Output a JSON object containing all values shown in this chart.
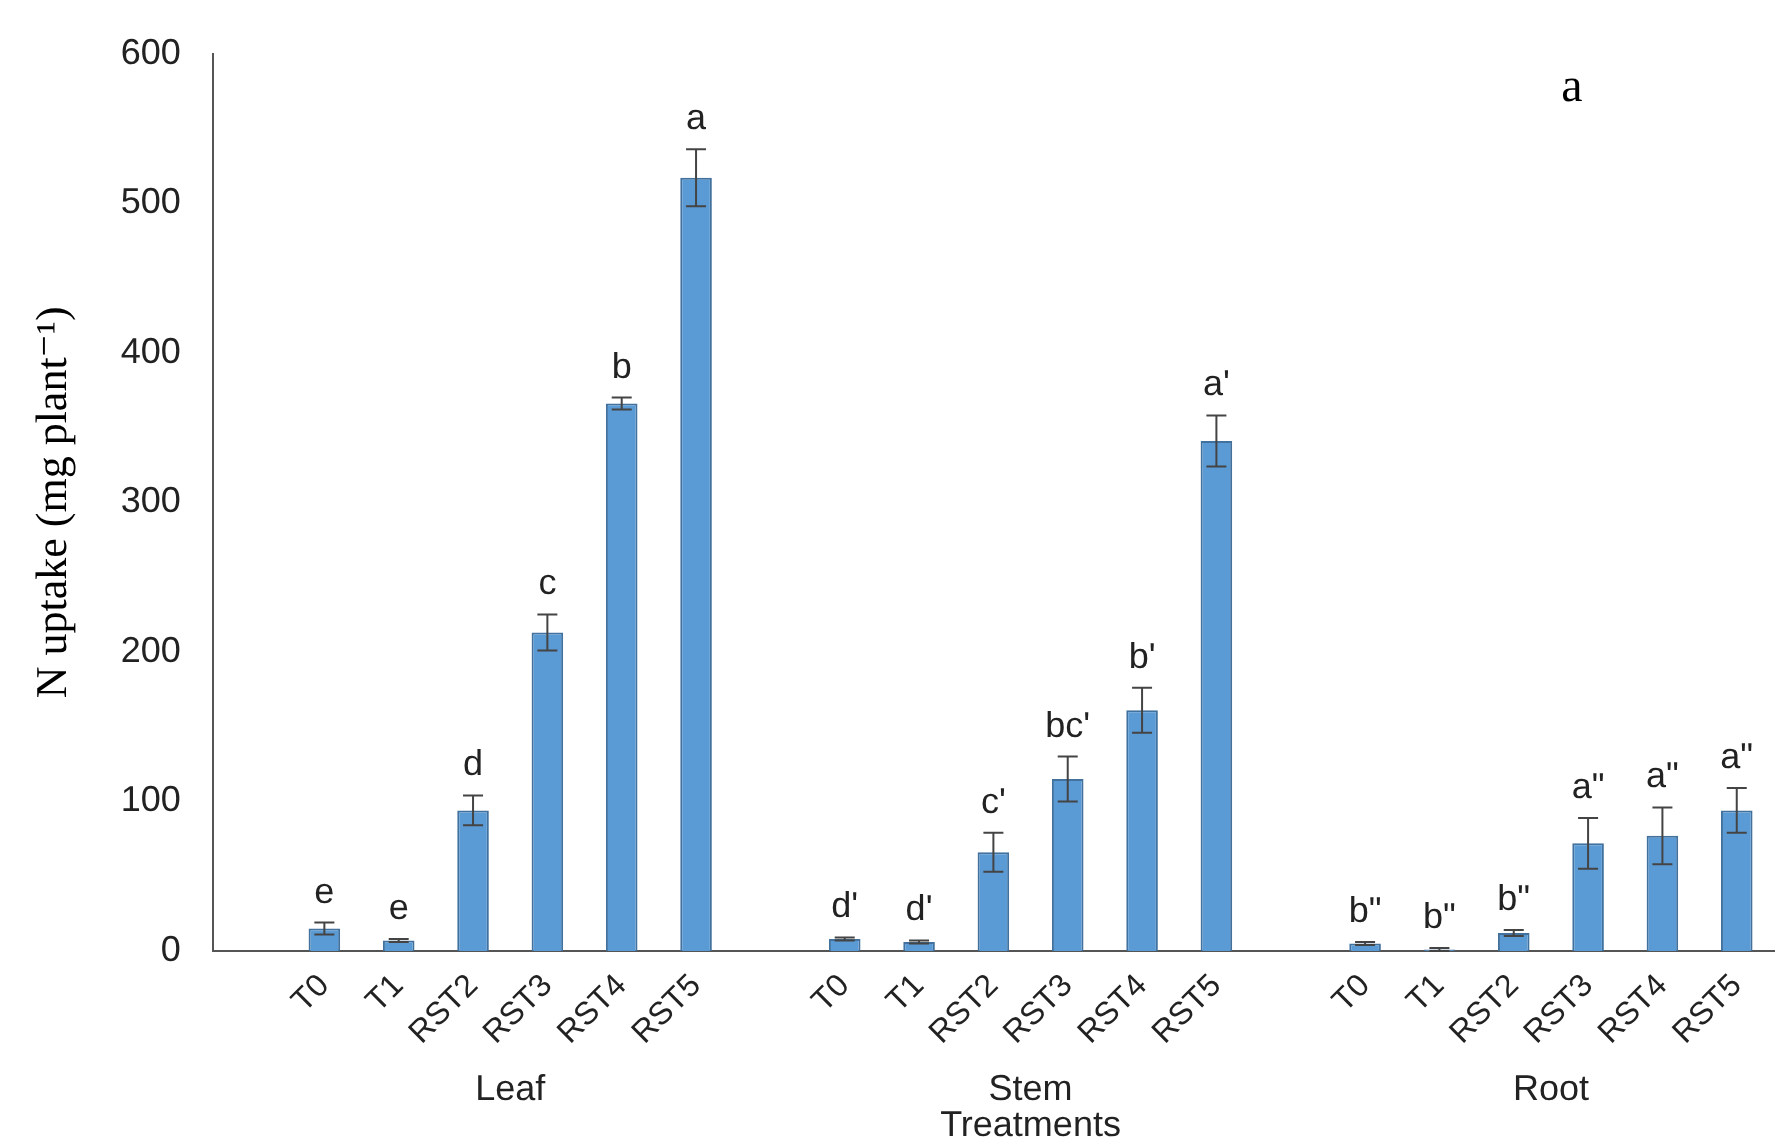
{
  "chart_data": {
    "type": "bar",
    "ylabel": "N uptake (mg plant⁻¹)",
    "xlabel": "Treatments",
    "categories": [
      null,
      "T0",
      "T1",
      "RST2",
      "RST3",
      "RST4",
      "RST5",
      null,
      "T0",
      "T1",
      "RST2",
      "RST3",
      "RST4",
      "RST5",
      null,
      "T0",
      "T1",
      "RST2",
      "RST3",
      "RST4",
      "RST5"
    ],
    "values": [
      null,
      15,
      7,
      94,
      213,
      366,
      517,
      null,
      8,
      6,
      66,
      115,
      161,
      341,
      null,
      5,
      1,
      12,
      72,
      77,
      94
    ],
    "errors": [
      null,
      4,
      1,
      10,
      12,
      4,
      19,
      null,
      1,
      1,
      13,
      15,
      15,
      17,
      null,
      1,
      1,
      2,
      17,
      19,
      15
    ],
    "value_labels": [
      null,
      "e",
      "e",
      "d",
      "c",
      "b",
      "a",
      null,
      "d'",
      "d'",
      "c'",
      "bc'",
      "b'",
      "a'",
      null,
      "b\"",
      "b\"",
      "b\"",
      "a\"",
      "a\"",
      "a\""
    ],
    "color": "#5b9bd5",
    "ylim": [
      0,
      600
    ],
    "yticks": [
      0,
      100,
      200,
      300,
      400,
      500,
      600
    ],
    "annotations": [
      "a",
      "Leaf",
      "Stem",
      "Root"
    ]
  }
}
